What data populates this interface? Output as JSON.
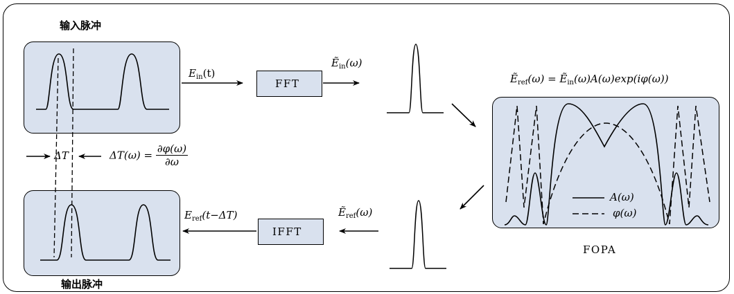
{
  "labels": {
    "input_pulse": "输入脉冲",
    "output_pulse": "输出脉冲",
    "fft": "FFT",
    "ifft": "IFFT",
    "fopa": "FOPA"
  },
  "math": {
    "e_in_t": "E",
    "e_in_t_sub": "in",
    "e_in_t_arg": "(t)",
    "e_in_w": "Ẽ",
    "e_in_w_sub": "in",
    "e_in_w_arg": "(ω)",
    "e_ref_eq_lhs": "Ẽ",
    "e_ref_eq_lhs_sub": "ref",
    "e_ref_eq_rest": "(ω) = Ẽ",
    "e_ref_eq_sub2": "in",
    "e_ref_eq_tail": "(ω)A(ω)exp(iφ(ω))",
    "delta_t": "ΔT",
    "delta_t_w": "ΔT(ω) =",
    "frac_num": "∂φ(ω)",
    "frac_den": "∂ω",
    "e_ref_w": "Ẽ",
    "e_ref_w_sub": "ref",
    "e_ref_w_arg": "(ω)",
    "e_ref_t": "E",
    "e_ref_t_sub": "ref",
    "e_ref_t_arg": "(t−ΔT)"
  },
  "legend": {
    "solid": "A(ω)",
    "dashed": "φ(ω)"
  }
}
